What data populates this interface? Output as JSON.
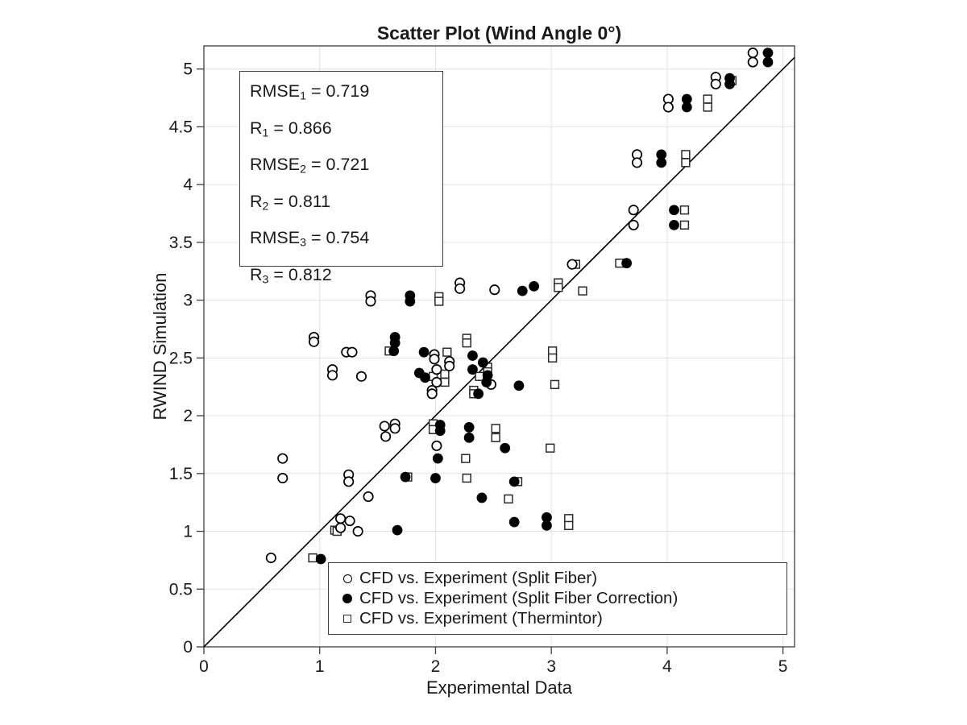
{
  "chart_data": {
    "type": "scatter",
    "title": "Scatter Plot (Wind Angle 0°)",
    "xlabel": "Experimental Data",
    "ylabel": "RWIND Simulation",
    "xlim": [
      0,
      5.1
    ],
    "ylim": [
      0,
      5.2
    ],
    "ticks": {
      "x": [
        0,
        1,
        2,
        3,
        4,
        5
      ],
      "y": [
        0,
        0.5,
        1,
        1.5,
        2,
        2.5,
        3,
        3.5,
        4,
        4.5,
        5
      ]
    },
    "grid": true,
    "grid_color": "#e2e2e2",
    "axis_color": "#3d3d3d",
    "marker_color": "#000000",
    "background": "#ffffff",
    "legend_position": "south-inside",
    "identity_line": {
      "from": [
        0,
        0
      ],
      "to": [
        5.1,
        5.1
      ]
    },
    "stats_lines": [
      {
        "base": "RMSE",
        "sub": "1",
        "rest": " = 0.719"
      },
      {
        "base": "R",
        "sub": "1",
        "rest": " = 0.866"
      },
      {
        "base": "RMSE",
        "sub": "2",
        "rest": " = 0.721"
      },
      {
        "base": "R",
        "sub": "2",
        "rest": " = 0.811"
      },
      {
        "base": "RMSE",
        "sub": "3",
        "rest": " = 0.754"
      },
      {
        "base": "R",
        "sub": "3",
        "rest": " = 0.812"
      }
    ],
    "series": [
      {
        "name": "CFD vs. Experiment (Split Fiber)",
        "marker": "open-circle",
        "points": [
          [
            4.74,
            5.14
          ],
          [
            4.74,
            5.06
          ],
          [
            4.42,
            4.93
          ],
          [
            4.42,
            4.87
          ],
          [
            4.01,
            4.74
          ],
          [
            4.01,
            4.67
          ],
          [
            3.74,
            4.26
          ],
          [
            3.74,
            4.19
          ],
          [
            3.71,
            3.78
          ],
          [
            3.71,
            3.65
          ],
          [
            3.18,
            3.31
          ],
          [
            2.21,
            3.15
          ],
          [
            2.21,
            3.1
          ],
          [
            2.51,
            3.09
          ],
          [
            1.44,
            3.04
          ],
          [
            1.44,
            2.99
          ],
          [
            0.95,
            2.68
          ],
          [
            0.95,
            2.64
          ],
          [
            1.23,
            2.55
          ],
          [
            1.28,
            2.55
          ],
          [
            1.99,
            2.53
          ],
          [
            1.99,
            2.49
          ],
          [
            2.12,
            2.47
          ],
          [
            2.12,
            2.43
          ],
          [
            2.01,
            2.4
          ],
          [
            2.01,
            2.29
          ],
          [
            2.48,
            2.27
          ],
          [
            1.97,
            2.22
          ],
          [
            1.97,
            2.19
          ],
          [
            1.11,
            2.4
          ],
          [
            1.11,
            2.35
          ],
          [
            1.36,
            2.34
          ],
          [
            1.56,
            1.91
          ],
          [
            1.65,
            1.93
          ],
          [
            1.65,
            1.89
          ],
          [
            1.57,
            1.82
          ],
          [
            2.01,
            1.74
          ],
          [
            0.68,
            1.63
          ],
          [
            0.68,
            1.46
          ],
          [
            1.25,
            1.49
          ],
          [
            1.25,
            1.43
          ],
          [
            1.42,
            1.3
          ],
          [
            1.18,
            1.11
          ],
          [
            1.26,
            1.09
          ],
          [
            1.18,
            1.03
          ],
          [
            1.33,
            1.0
          ],
          [
            0.58,
            0.77
          ]
        ]
      },
      {
        "name": "CFD vs. Experiment (Split Fiber Correction)",
        "marker": "filled-circle",
        "points": [
          [
            4.87,
            5.14
          ],
          [
            4.87,
            5.06
          ],
          [
            4.54,
            4.92
          ],
          [
            4.54,
            4.87
          ],
          [
            4.17,
            4.74
          ],
          [
            4.17,
            4.67
          ],
          [
            3.95,
            4.26
          ],
          [
            3.95,
            4.19
          ],
          [
            4.06,
            3.78
          ],
          [
            4.06,
            3.65
          ],
          [
            3.65,
            3.32
          ],
          [
            2.85,
            3.12
          ],
          [
            2.75,
            3.08
          ],
          [
            1.78,
            3.04
          ],
          [
            1.78,
            2.99
          ],
          [
            1.65,
            2.68
          ],
          [
            1.65,
            2.63
          ],
          [
            1.64,
            2.56
          ],
          [
            1.9,
            2.55
          ],
          [
            2.32,
            2.52
          ],
          [
            2.41,
            2.46
          ],
          [
            2.32,
            2.4
          ],
          [
            2.45,
            2.35
          ],
          [
            2.44,
            2.29
          ],
          [
            2.37,
            2.19
          ],
          [
            1.86,
            2.37
          ],
          [
            1.91,
            2.33
          ],
          [
            2.72,
            2.26
          ],
          [
            2.04,
            1.92
          ],
          [
            2.04,
            1.87
          ],
          [
            2.29,
            1.9
          ],
          [
            2.29,
            1.81
          ],
          [
            2.6,
            1.72
          ],
          [
            2.02,
            1.63
          ],
          [
            1.74,
            1.47
          ],
          [
            2.0,
            1.46
          ],
          [
            2.68,
            1.43
          ],
          [
            2.4,
            1.29
          ],
          [
            2.68,
            1.08
          ],
          [
            2.96,
            1.12
          ],
          [
            2.96,
            1.05
          ],
          [
            1.67,
            1.01
          ],
          [
            1.01,
            0.76
          ]
        ]
      },
      {
        "name": "CFD vs. Experiment (Thermintor)",
        "marker": "open-square",
        "points": [
          [
            4.56,
            4.9
          ],
          [
            4.35,
            4.74
          ],
          [
            4.35,
            4.67
          ],
          [
            4.16,
            4.26
          ],
          [
            4.16,
            4.19
          ],
          [
            4.15,
            3.78
          ],
          [
            4.15,
            3.65
          ],
          [
            3.59,
            3.32
          ],
          [
            3.21,
            3.31
          ],
          [
            3.06,
            3.15
          ],
          [
            3.06,
            3.11
          ],
          [
            3.27,
            3.08
          ],
          [
            2.03,
            3.03
          ],
          [
            2.03,
            2.99
          ],
          [
            2.27,
            2.67
          ],
          [
            2.27,
            2.63
          ],
          [
            1.6,
            2.56
          ],
          [
            2.1,
            2.55
          ],
          [
            3.01,
            2.56
          ],
          [
            3.01,
            2.5
          ],
          [
            2.45,
            2.42
          ],
          [
            2.45,
            2.38
          ],
          [
            2.38,
            2.34
          ],
          [
            1.98,
            2.34
          ],
          [
            2.08,
            2.36
          ],
          [
            2.08,
            2.29
          ],
          [
            2.33,
            2.22
          ],
          [
            2.33,
            2.19
          ],
          [
            3.03,
            2.27
          ],
          [
            1.98,
            1.93
          ],
          [
            1.98,
            1.88
          ],
          [
            2.52,
            1.89
          ],
          [
            2.52,
            1.81
          ],
          [
            2.99,
            1.72
          ],
          [
            2.26,
            1.63
          ],
          [
            2.27,
            1.46
          ],
          [
            1.76,
            1.47
          ],
          [
            2.71,
            1.43
          ],
          [
            2.63,
            1.28
          ],
          [
            3.15,
            1.11
          ],
          [
            3.15,
            1.05
          ],
          [
            1.13,
            1.01
          ],
          [
            1.15,
            1.0
          ],
          [
            0.94,
            0.77
          ]
        ]
      }
    ]
  }
}
